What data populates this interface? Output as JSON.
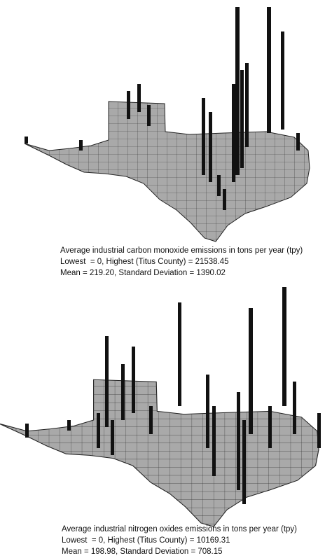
{
  "maps": [
    {
      "caption": {
        "title": "Average industrial carbon monoxide emissions in tons per year (tpy)",
        "range": "Lowest  = 0, Highest (Titus County) = 21538.45",
        "stats": "Mean = 219.20, Standard Deviation = 1390.02"
      }
    },
    {
      "caption": {
        "title": "Average industrial nitrogen oxides emissions in tons per year (tpy)",
        "range": "Lowest  = 0, Highest (Titus County) = 10169.31",
        "stats": "Mean = 198.98, Standard Deviation = 708.15"
      }
    }
  ]
}
